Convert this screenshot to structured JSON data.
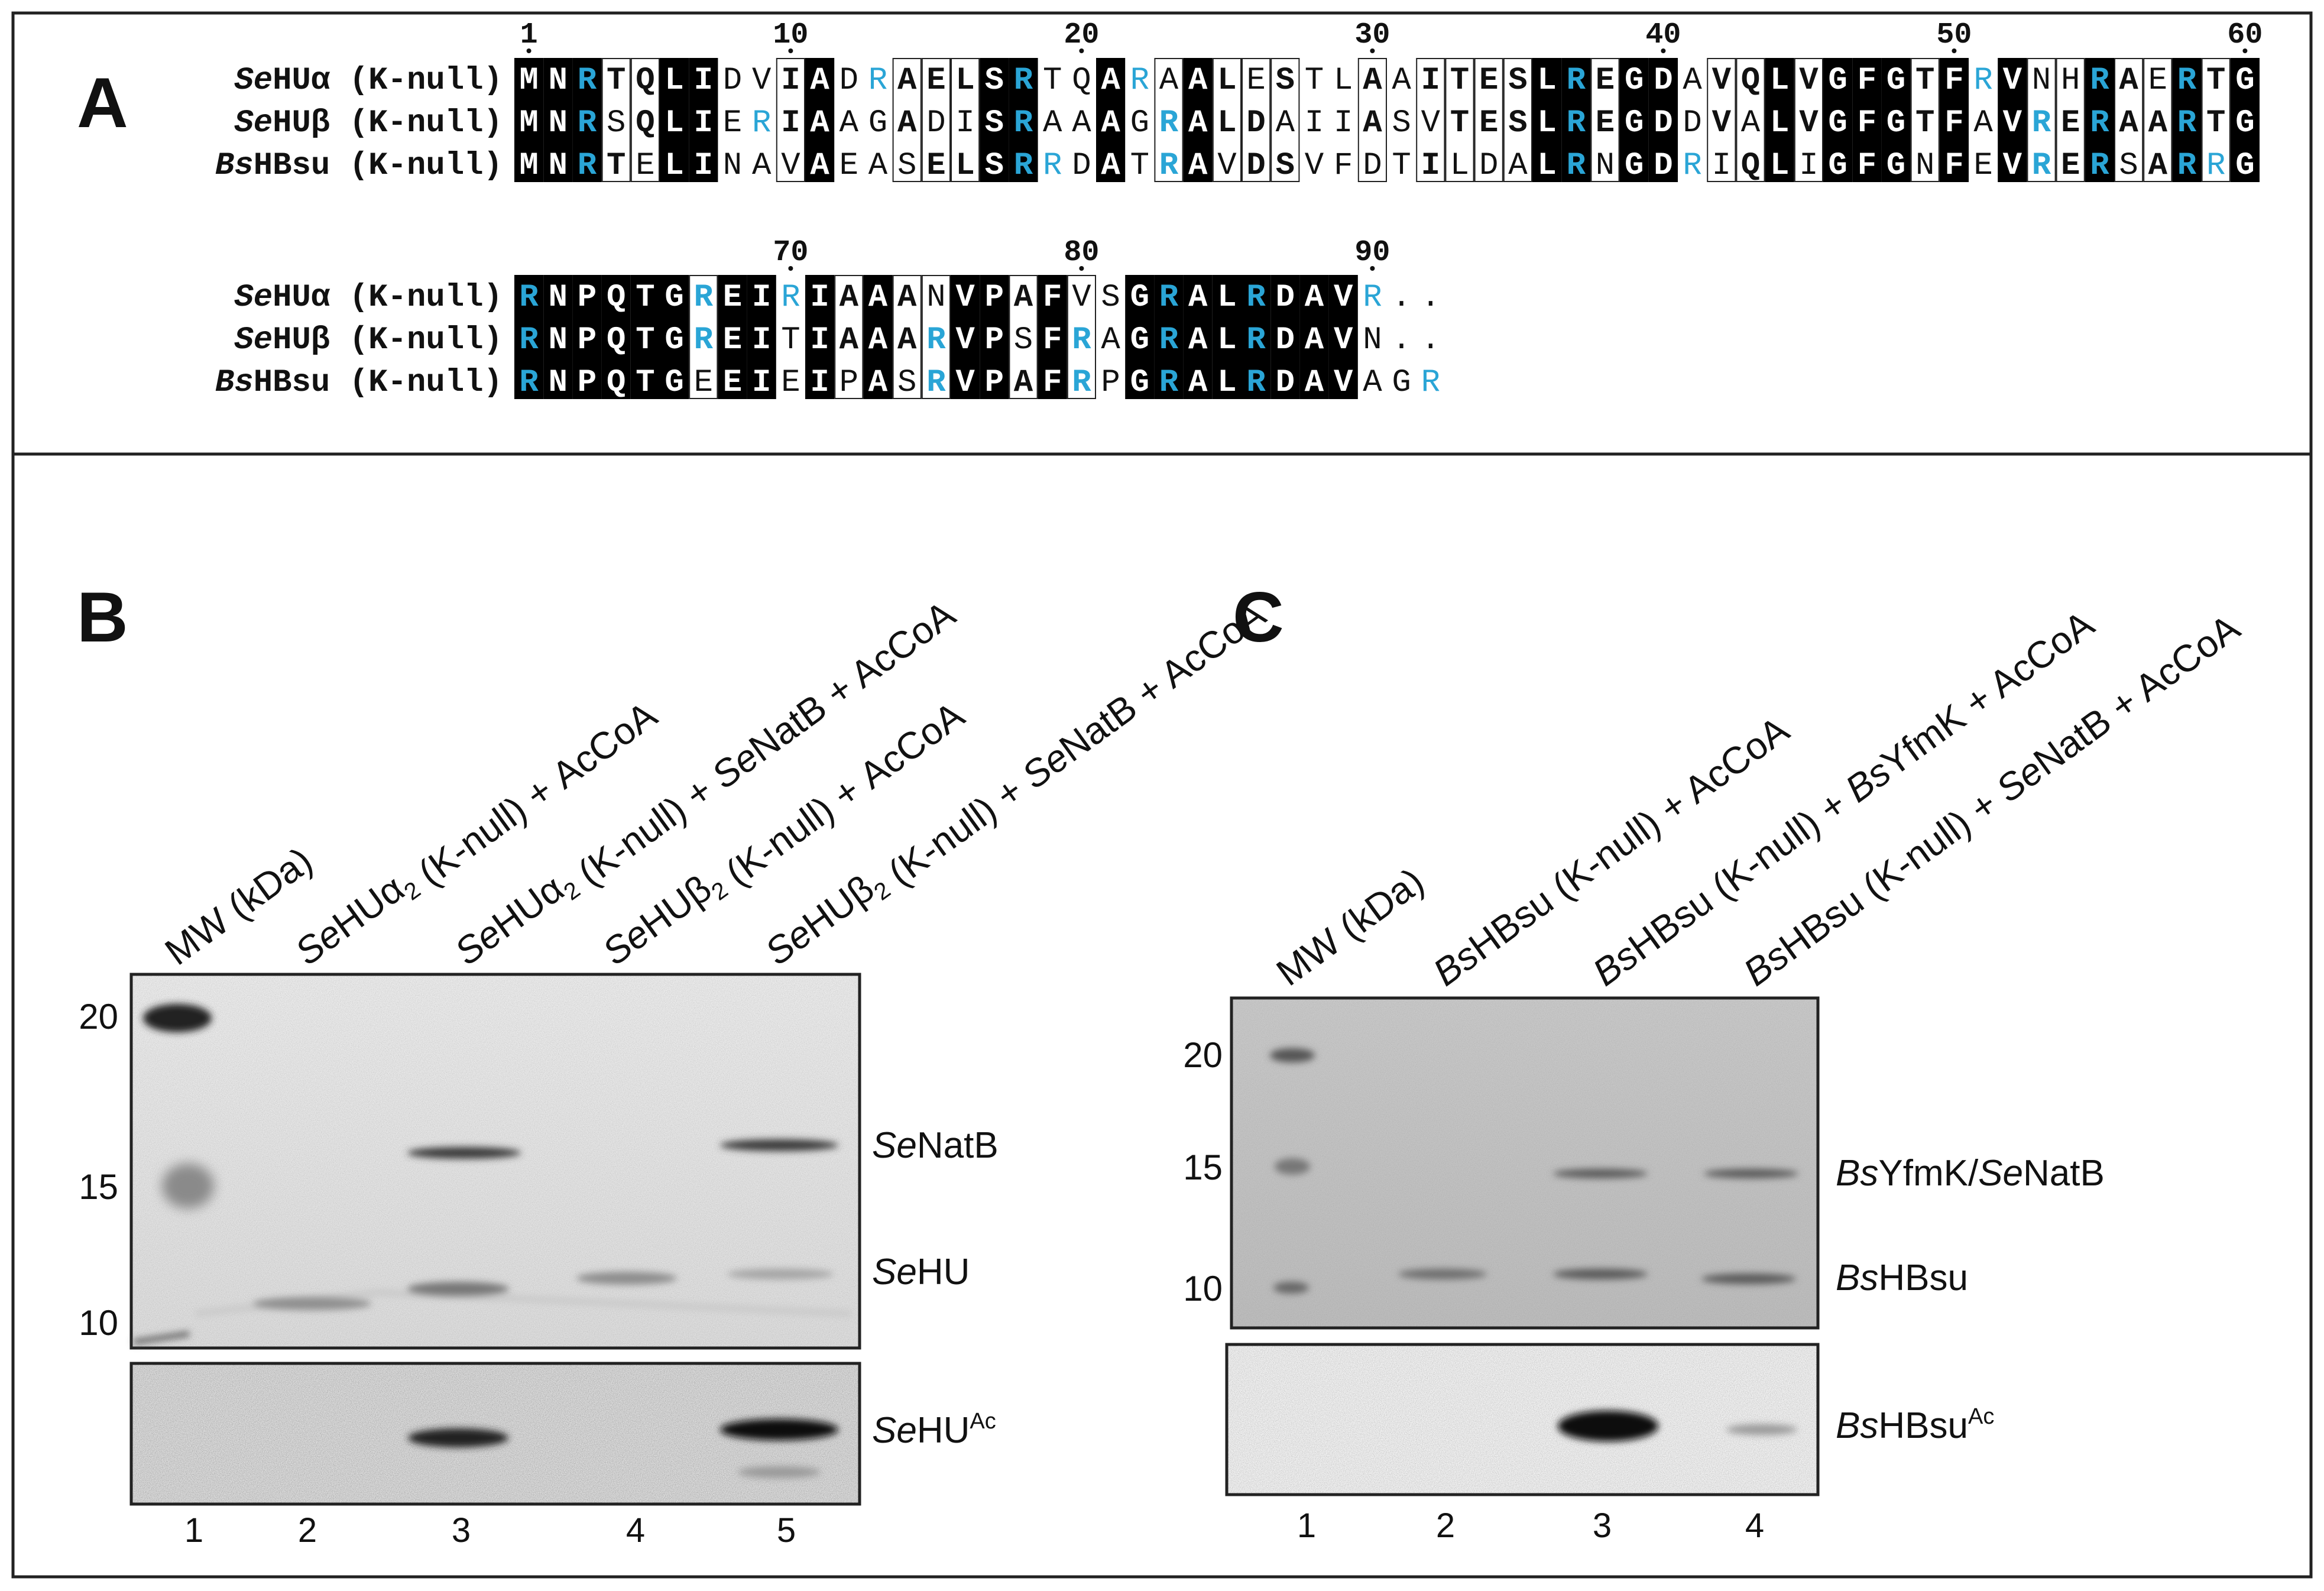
{
  "panels": {
    "a": {
      "letter": "A",
      "position_numbers_row1": [
        "1",
        "10",
        "20",
        "30",
        "40",
        "50",
        "60"
      ],
      "position_numbers_row2": [
        "70",
        "80",
        "90"
      ],
      "sequence_labels": [
        {
          "italic": "Se",
          "plain": "HUα (K-null)"
        },
        {
          "italic": "Se",
          "plain": "HUβ (K-null)"
        },
        {
          "italic": "Bs",
          "plain": "HBsu (K-null)"
        }
      ],
      "row1_sequences": [
        "MNRTQLIDVIADRAELSRTQARAALESTLAAITESLREGDAVQLVGFGTFRVNHRAERTG",
        "MNRSQLIERIAAGADISRAAAGRALDAIIASVTESLREGDDVALVGFGTFAVRERAARTG",
        "MNRTELINAVAEASELSRRDATRAVDSVFDTILDALRNGDRIQLIGFGNFEVRERSARRG"
      ],
      "row2_sequences": [
        "RNPQTGREIRIAAANVPAFVSGRALRDAVR..",
        "RNPQTGREITIAAARVPSFRAGRALRDAVN..",
        "RNPQTGEEIEIPASRVPAFRPGRALRDAVAGR"
      ],
      "colors": {
        "conserved_bg": "#000000",
        "conserved_fg": "#ffffff",
        "arginine_accent": "#2aa5d6",
        "text": "#111111"
      }
    },
    "b": {
      "letter": "B",
      "lane_headers": [
        {
          "parts": [
            {
              "t": "MW (kDa)"
            }
          ]
        },
        {
          "parts": [
            {
              "t": "Se",
              "i": true
            },
            {
              "t": "HUα"
            },
            {
              "t": "2",
              "sub": true
            },
            {
              "t": " (K-null) + AcCoA"
            }
          ]
        },
        {
          "parts": [
            {
              "t": "Se",
              "i": true
            },
            {
              "t": "HUα"
            },
            {
              "t": "2",
              "sub": true
            },
            {
              "t": " (K-null) + "
            },
            {
              "t": "Se",
              "i": true
            },
            {
              "t": "NatB + AcCoA"
            }
          ]
        },
        {
          "parts": [
            {
              "t": "Se",
              "i": true
            },
            {
              "t": "HUβ"
            },
            {
              "t": "2",
              "sub": true
            },
            {
              "t": " (K-null) + AcCoA"
            }
          ]
        },
        {
          "parts": [
            {
              "t": "Se",
              "i": true
            },
            {
              "t": "HUβ"
            },
            {
              "t": "2",
              "sub": true
            },
            {
              "t": " (K-null) + "
            },
            {
              "t": "Se",
              "i": true
            },
            {
              "t": "NatB + AcCoA"
            }
          ]
        }
      ],
      "mw_markers": [
        "20",
        "15",
        "10"
      ],
      "side_labels": {
        "natb": {
          "it": "Se",
          "rest": "NatB"
        },
        "hu": {
          "it": "Se",
          "rest": "HU"
        },
        "hu_ac": {
          "it": "Se",
          "rest": "HU",
          "sup": "Ac"
        }
      },
      "lane_numbers": [
        "1",
        "2",
        "3",
        "4",
        "5"
      ]
    },
    "c": {
      "letter": "C",
      "lane_headers": [
        {
          "parts": [
            {
              "t": "MW (kDa)"
            }
          ]
        },
        {
          "parts": [
            {
              "t": "Bs",
              "i": true
            },
            {
              "t": "HBsu (K-null) + AcCoA"
            }
          ]
        },
        {
          "parts": [
            {
              "t": "Bs",
              "i": true
            },
            {
              "t": "HBsu (K-null) + "
            },
            {
              "t": "Bs",
              "i": true
            },
            {
              "t": "YfmK + AcCoA"
            }
          ]
        },
        {
          "parts": [
            {
              "t": "Bs",
              "i": true
            },
            {
              "t": "HBsu (K-null) + "
            },
            {
              "t": "Se",
              "i": true
            },
            {
              "t": "NatB + AcCoA"
            }
          ]
        }
      ],
      "mw_markers": [
        "20",
        "15",
        "10"
      ],
      "side_labels": {
        "yfmk": {
          "it1": "Bs",
          "mid": "YfmK/",
          "it2": "Se",
          "rest": "NatB"
        },
        "hbsu": {
          "it": "Bs",
          "rest": "HBsu"
        },
        "hbsu_ac": {
          "it": "Bs",
          "rest": "HBsu",
          "sup": "Ac"
        }
      },
      "lane_numbers": [
        "1",
        "2",
        "3",
        "4"
      ]
    }
  }
}
